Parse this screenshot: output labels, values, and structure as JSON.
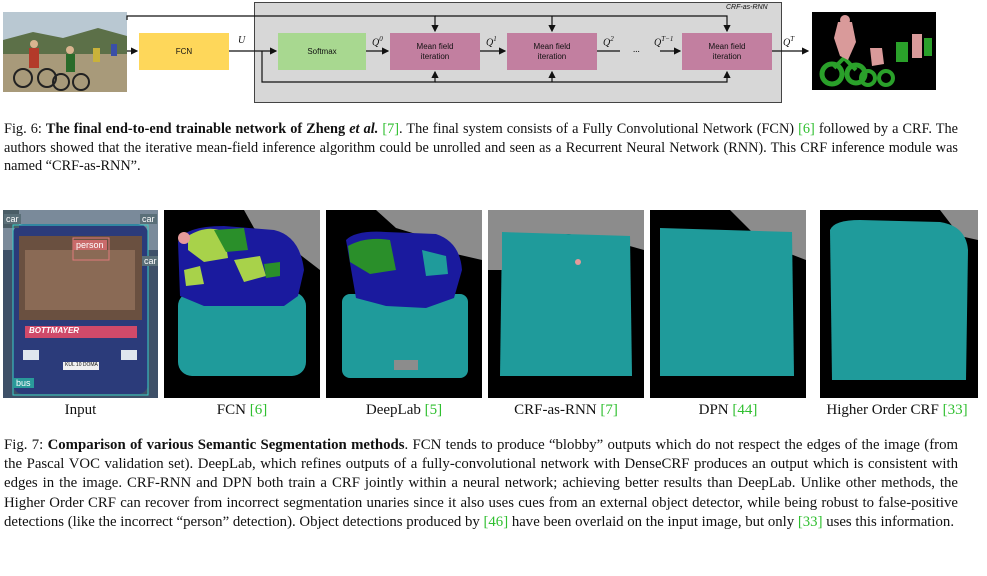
{
  "figure6": {
    "crf_box_label": "CRF-as-RNN",
    "fcn_label": "FCN",
    "u_label": "U",
    "softmax_label": "Softmax",
    "mf_label_line1": "Mean field",
    "mf_label_line2": "iteration",
    "q0": "Q",
    "q0_sup": "0",
    "q1": "Q",
    "q1_sup": "1",
    "q2": "Q",
    "q2_sup": "2",
    "qt1": "Q",
    "qt1_sup": "T−1",
    "qt": "Q",
    "qt_sup": "T",
    "ellipsis": "...",
    "caption_prefix": "Fig. 6: ",
    "caption_bold": "The final end-to-end trainable network of Zheng ",
    "caption_bold_italic": "et al.",
    "caption_ref1": "[7]",
    "caption_text1": ". The final system consists of a Fully Convolutional Network (FCN) ",
    "caption_ref2": "[6]",
    "caption_text2": " followed by a CRF. The authors showed that the iterative mean-field inference algorithm could be unrolled and seen as a Recurrent Neural Network (RNN). This CRF inference module was named “CRF-as-RNN”."
  },
  "figure7": {
    "input_tags": {
      "car_left": "car",
      "car_right": "car",
      "car_right2": "car",
      "person": "person",
      "bus": "bus",
      "bus_sign": "BOTTMAYER",
      "plate": "KUL 10 DOMA"
    },
    "labels": [
      {
        "text": "Input",
        "ref": ""
      },
      {
        "text": "FCN ",
        "ref": "[6]"
      },
      {
        "text": "DeepLab ",
        "ref": "[5]"
      },
      {
        "text": "CRF-as-RNN ",
        "ref": "[7]"
      },
      {
        "text": "DPN ",
        "ref": "[44]"
      },
      {
        "text": "Higher Order CRF ",
        "ref": "[33]"
      }
    ],
    "caption_prefix": "Fig. 7: ",
    "caption_bold": "Comparison of various Semantic Segmentation methods",
    "caption_text1": ". FCN tends to produce “blobby” outputs which do not respect the edges of the image (from the Pascal VOC validation set). DeepLab, which refines outputs of a fully-convolutional network with DenseCRF produces an output which is consistent with edges in the image. CRF-RNN and DPN both train a CRF jointly within a neural network; achieving better results than DeepLab. Unlike other methods, the Higher Order CRF can recover from incorrect segmentation unaries since it also uses cues from an external object detector, while being robust to false-positive detections (like the incorrect “person” detection). Object detections produced by ",
    "caption_ref1": "[46]",
    "caption_text2": " have been overlaid on the input image, but only ",
    "caption_ref2": "[33]",
    "caption_text3": " uses this information."
  },
  "colors": {
    "fcn_box": "#fed75a",
    "softmax_box": "#a8d890",
    "mf_box": "#c27fa0",
    "crf_bg": "#d7d7d7",
    "seg_bus": "#1f9b9b",
    "seg_bg": "#000000",
    "seg_gray": "#8c8c8c",
    "seg_blue": "#1a1a9e",
    "seg_green": "#2a8f2a",
    "seg_lime": "#a8d24a",
    "seg_pink": "#e59a9a",
    "ref_green": "#2fbf2f"
  }
}
